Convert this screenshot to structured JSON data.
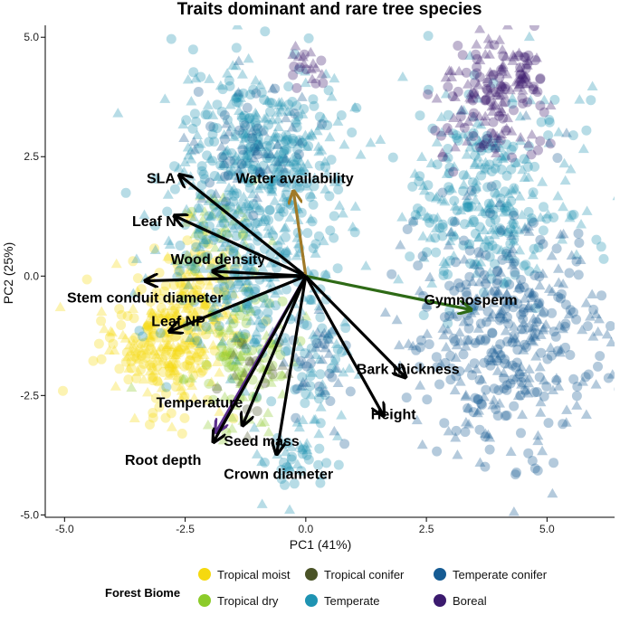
{
  "chart_data": {
    "type": "scatter",
    "title": "Traits dominant and rare tree species",
    "xlabel": "PC1 (41%)",
    "ylabel": "PC2 (25%)",
    "xlim": [
      -5.4,
      6.4
    ],
    "ylim": [
      -5.05,
      5.25
    ],
    "xticks": [
      -5.0,
      -2.5,
      0.0,
      2.5,
      5.0
    ],
    "yticks": [
      -5.0,
      -2.5,
      0.0,
      2.5,
      5.0
    ],
    "xtick_labels": [
      "-5.0",
      "-2.5",
      "0.0",
      "2.5",
      "5.0"
    ],
    "ytick_labels": [
      "-5.0",
      "-2.5",
      "0.0",
      "2.5",
      "5.0"
    ],
    "grid": false,
    "legend": {
      "title": "Forest Biome",
      "placement": "bottom",
      "entries": [
        {
          "name": "Tropical moist",
          "color": "#F5D90F"
        },
        {
          "name": "Tropical dry",
          "color": "#8CCB2A"
        },
        {
          "name": "Tropical conifer",
          "color": "#4A5327"
        },
        {
          "name": "Temperate",
          "color": "#1E93B2"
        },
        {
          "name": "Temperate conifer",
          "color": "#165B93"
        },
        {
          "name": "Boreal",
          "color": "#3B1A6E"
        }
      ]
    },
    "series": [
      {
        "name": "Tropical moist",
        "color": "#F5D90F",
        "clouds": [
          {
            "cx": -3.0,
            "cy": -1.4,
            "sx": 0.6,
            "sy": 0.65,
            "n": 240
          },
          {
            "cx": -2.3,
            "cy": -0.6,
            "sx": 0.45,
            "sy": 0.9,
            "n": 140
          }
        ]
      },
      {
        "name": "Tropical dry",
        "color": "#8CCB2A",
        "clouds": [
          {
            "cx": -1.4,
            "cy": -1.7,
            "sx": 0.55,
            "sy": 0.75,
            "n": 120
          },
          {
            "cx": -1.8,
            "cy": 0.9,
            "sx": 0.4,
            "sy": 0.6,
            "n": 40
          }
        ]
      },
      {
        "name": "Tropical conifer",
        "color": "#4A5327",
        "clouds": [
          {
            "cx": -1.2,
            "cy": -1.9,
            "sx": 0.4,
            "sy": 0.5,
            "n": 20
          }
        ]
      },
      {
        "name": "Temperate",
        "color": "#1E93B2",
        "clouds": [
          {
            "cx": -0.9,
            "cy": 2.5,
            "sx": 0.9,
            "sy": 1.0,
            "n": 380
          },
          {
            "cx": -1.2,
            "cy": 0.3,
            "sx": 0.9,
            "sy": 1.1,
            "n": 260
          },
          {
            "cx": 3.8,
            "cy": 1.6,
            "sx": 0.85,
            "sy": 1.2,
            "n": 320
          },
          {
            "cx": -0.3,
            "cy": -3.7,
            "sx": 0.4,
            "sy": 0.45,
            "n": 45
          },
          {
            "cx": 0.3,
            "cy": -1.8,
            "sx": 0.35,
            "sy": 0.7,
            "n": 50
          }
        ]
      },
      {
        "name": "Temperate conifer",
        "color": "#165B93",
        "clouds": [
          {
            "cx": 4.2,
            "cy": -1.3,
            "sx": 1.0,
            "sy": 1.3,
            "n": 420
          },
          {
            "cx": 0.2,
            "cy": -1.7,
            "sx": 0.3,
            "sy": 0.6,
            "n": 40
          },
          {
            "cx": -1.1,
            "cy": 2.7,
            "sx": 0.6,
            "sy": 0.7,
            "n": 60
          }
        ]
      },
      {
        "name": "Boreal",
        "color": "#3B1A6E",
        "clouds": [
          {
            "cx": 3.8,
            "cy": 3.6,
            "sx": 0.55,
            "sy": 0.6,
            "n": 130
          },
          {
            "cx": 4.3,
            "cy": 4.3,
            "sx": 0.35,
            "sy": 0.35,
            "n": 50
          },
          {
            "cx": 0.0,
            "cy": 4.4,
            "sx": 0.3,
            "sy": 0.25,
            "n": 20
          }
        ]
      }
    ],
    "vectors": [
      {
        "label": "SLA",
        "x": -2.6,
        "y": 2.1,
        "color": "#000000",
        "lx": -3.3,
        "ly": 1.95
      },
      {
        "label": "Water availability",
        "x": -0.25,
        "y": 1.75,
        "color": "#A07A28",
        "lx": -1.45,
        "ly": 1.95
      },
      {
        "label": "Leaf N",
        "x": -2.7,
        "y": 1.25,
        "color": "#000000",
        "lx": -3.6,
        "ly": 1.05
      },
      {
        "label": "Wood density",
        "x": -1.9,
        "y": 0.1,
        "color": "#000000",
        "lx": -2.8,
        "ly": 0.25
      },
      {
        "label": "Stem conduit diameter",
        "x": -3.3,
        "y": -0.1,
        "color": "#000000",
        "lx": -4.95,
        "ly": -0.55
      },
      {
        "label": "Leaf NP",
        "x": -2.8,
        "y": -1.15,
        "color": "#000000",
        "lx": -3.2,
        "ly": -1.05
      },
      {
        "label": "Gymnosperm",
        "x": 3.4,
        "y": -0.7,
        "color": "#2E6A16",
        "lx": 2.45,
        "ly": -0.6
      },
      {
        "label": "Bark thickness",
        "x": 2.05,
        "y": -2.1,
        "color": "#000000",
        "lx": 1.05,
        "ly": -2.05
      },
      {
        "label": "Height",
        "x": 1.6,
        "y": -2.9,
        "color": "#000000",
        "lx": 1.35,
        "ly": -3.0
      },
      {
        "label": "Temperature",
        "x": -1.85,
        "y": -3.25,
        "color": "#5B2E8C",
        "lx": -3.1,
        "ly": -2.75
      },
      {
        "label": "Seed mass",
        "x": -1.3,
        "y": -3.1,
        "color": "#000000",
        "lx": -1.7,
        "ly": -3.55
      },
      {
        "label": "Root depth",
        "x": -1.9,
        "y": -3.45,
        "color": "#000000",
        "lx": -3.75,
        "ly": -3.95
      },
      {
        "label": "Crown diameter",
        "x": -0.6,
        "y": -3.7,
        "color": "#000000",
        "lx": -1.7,
        "ly": -4.25
      }
    ]
  }
}
